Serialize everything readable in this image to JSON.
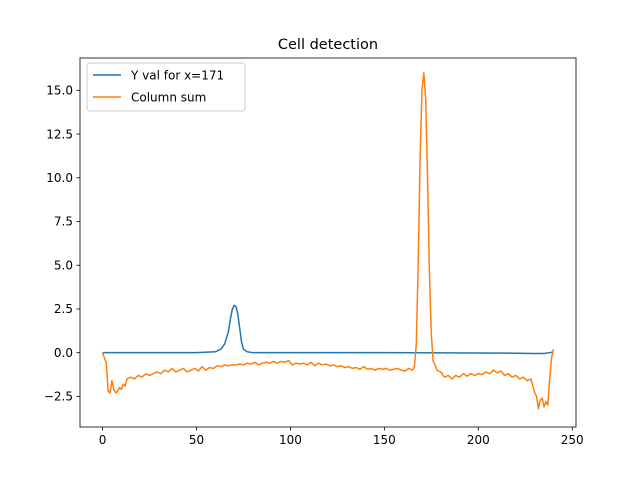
{
  "chart_data": {
    "type": "line",
    "title": "Cell detection",
    "xlabel": "",
    "ylabel": "",
    "xlim": [
      -12,
      252
    ],
    "ylim": [
      -4.25,
      16.85
    ],
    "xticks": [
      0,
      50,
      100,
      150,
      200,
      250
    ],
    "yticks": [
      -2.5,
      0.0,
      2.5,
      5.0,
      7.5,
      10.0,
      12.5,
      15.0
    ],
    "ytick_labels": [
      "−2.5",
      "0.0",
      "2.5",
      "5.0",
      "7.5",
      "10.0",
      "12.5",
      "15.0"
    ],
    "grid": false,
    "legend_position": "upper left",
    "series": [
      {
        "name": "Y val for x=171",
        "color": "#1f77b4",
        "points": [
          [
            0,
            0.0
          ],
          [
            10,
            0.0
          ],
          [
            30,
            0.0
          ],
          [
            50,
            0.0
          ],
          [
            60,
            0.05
          ],
          [
            63,
            0.2
          ],
          [
            65,
            0.5
          ],
          [
            67,
            1.2
          ],
          [
            68,
            1.9
          ],
          [
            69,
            2.45
          ],
          [
            70,
            2.7
          ],
          [
            71,
            2.65
          ],
          [
            72,
            2.2
          ],
          [
            73,
            1.4
          ],
          [
            74,
            0.6
          ],
          [
            75,
            0.2
          ],
          [
            77,
            0.05
          ],
          [
            80,
            0.0
          ],
          [
            100,
            0.0
          ],
          [
            150,
            0.0
          ],
          [
            200,
            -0.02
          ],
          [
            220,
            -0.03
          ],
          [
            230,
            -0.05
          ],
          [
            235,
            -0.05
          ],
          [
            238,
            0.0
          ],
          [
            240,
            0.05
          ]
        ]
      },
      {
        "name": "Column sum",
        "color": "#ff7f0e",
        "points": [
          [
            0,
            0.0
          ],
          [
            1,
            -0.3
          ],
          [
            2,
            -0.6
          ],
          [
            3,
            -2.2
          ],
          [
            4,
            -2.3
          ],
          [
            5,
            -1.6
          ],
          [
            6,
            -2.1
          ],
          [
            7,
            -2.3
          ],
          [
            8,
            -2.2
          ],
          [
            9,
            -2.0
          ],
          [
            10,
            -2.1
          ],
          [
            11,
            -1.8
          ],
          [
            12,
            -1.9
          ],
          [
            13,
            -1.5
          ],
          [
            15,
            -1.4
          ],
          [
            17,
            -1.5
          ],
          [
            19,
            -1.3
          ],
          [
            21,
            -1.4
          ],
          [
            23,
            -1.2
          ],
          [
            25,
            -1.3
          ],
          [
            27,
            -1.2
          ],
          [
            29,
            -1.1
          ],
          [
            31,
            -1.2
          ],
          [
            33,
            -1.0
          ],
          [
            35,
            -1.1
          ],
          [
            37,
            -0.9
          ],
          [
            39,
            -1.1
          ],
          [
            41,
            -1.0
          ],
          [
            43,
            -0.9
          ],
          [
            45,
            -1.1
          ],
          [
            47,
            -1.0
          ],
          [
            49,
            -0.9
          ],
          [
            51,
            -1.05
          ],
          [
            53,
            -0.8
          ],
          [
            55,
            -1.0
          ],
          [
            57,
            -0.85
          ],
          [
            59,
            -0.9
          ],
          [
            61,
            -0.75
          ],
          [
            63,
            -0.8
          ],
          [
            65,
            -0.7
          ],
          [
            67,
            -0.75
          ],
          [
            69,
            -0.7
          ],
          [
            71,
            -0.7
          ],
          [
            73,
            -0.65
          ],
          [
            75,
            -0.7
          ],
          [
            77,
            -0.6
          ],
          [
            79,
            -0.65
          ],
          [
            81,
            -0.55
          ],
          [
            83,
            -0.7
          ],
          [
            85,
            -0.6
          ],
          [
            87,
            -0.55
          ],
          [
            89,
            -0.6
          ],
          [
            91,
            -0.5
          ],
          [
            93,
            -0.6
          ],
          [
            95,
            -0.5
          ],
          [
            97,
            -0.55
          ],
          [
            99,
            -0.45
          ],
          [
            101,
            -0.7
          ],
          [
            103,
            -0.6
          ],
          [
            105,
            -0.65
          ],
          [
            107,
            -0.6
          ],
          [
            109,
            -0.7
          ],
          [
            111,
            -0.55
          ],
          [
            113,
            -0.75
          ],
          [
            115,
            -0.6
          ],
          [
            117,
            -0.7
          ],
          [
            119,
            -0.65
          ],
          [
            121,
            -0.75
          ],
          [
            123,
            -0.7
          ],
          [
            125,
            -0.8
          ],
          [
            127,
            -0.75
          ],
          [
            129,
            -0.85
          ],
          [
            131,
            -0.8
          ],
          [
            133,
            -0.9
          ],
          [
            135,
            -0.85
          ],
          [
            137,
            -0.95
          ],
          [
            139,
            -0.8
          ],
          [
            141,
            -0.95
          ],
          [
            143,
            -0.9
          ],
          [
            145,
            -1.0
          ],
          [
            147,
            -0.9
          ],
          [
            149,
            -0.95
          ],
          [
            151,
            -0.9
          ],
          [
            153,
            -1.0
          ],
          [
            155,
            -0.95
          ],
          [
            157,
            -0.9
          ],
          [
            159,
            -1.0
          ],
          [
            161,
            -1.05
          ],
          [
            163,
            -0.9
          ],
          [
            165,
            -1.0
          ],
          [
            166,
            -0.8
          ],
          [
            167,
            0.5
          ],
          [
            168,
            5.0
          ],
          [
            169,
            11.0
          ],
          [
            170,
            15.0
          ],
          [
            171,
            16.0
          ],
          [
            172,
            14.5
          ],
          [
            173,
            10.0
          ],
          [
            174,
            4.5
          ],
          [
            175,
            1.0
          ],
          [
            176,
            -0.5
          ],
          [
            177,
            -0.7
          ],
          [
            178,
            -1.0
          ],
          [
            180,
            -1.1
          ],
          [
            182,
            -1.4
          ],
          [
            184,
            -1.3
          ],
          [
            186,
            -1.5
          ],
          [
            188,
            -1.3
          ],
          [
            190,
            -1.4
          ],
          [
            192,
            -1.2
          ],
          [
            194,
            -1.35
          ],
          [
            196,
            -1.2
          ],
          [
            198,
            -1.3
          ],
          [
            200,
            -1.2
          ],
          [
            202,
            -1.25
          ],
          [
            204,
            -1.1
          ],
          [
            206,
            -1.2
          ],
          [
            208,
            -1.0
          ],
          [
            210,
            -1.15
          ],
          [
            212,
            -1.05
          ],
          [
            214,
            -1.3
          ],
          [
            216,
            -1.2
          ],
          [
            218,
            -1.4
          ],
          [
            220,
            -1.3
          ],
          [
            222,
            -1.5
          ],
          [
            224,
            -1.4
          ],
          [
            226,
            -1.6
          ],
          [
            228,
            -1.5
          ],
          [
            229,
            -1.9
          ],
          [
            230,
            -2.3
          ],
          [
            231,
            -2.5
          ],
          [
            232,
            -3.2
          ],
          [
            233,
            -2.7
          ],
          [
            234,
            -2.6
          ],
          [
            235,
            -3.1
          ],
          [
            236,
            -2.8
          ],
          [
            237,
            -3.0
          ],
          [
            238,
            -1.5
          ],
          [
            239,
            -0.3
          ],
          [
            240,
            0.2
          ]
        ]
      }
    ]
  }
}
